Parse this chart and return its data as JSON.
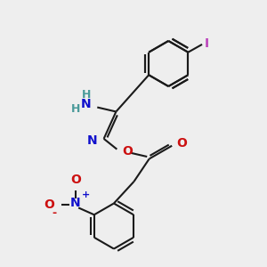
{
  "bg_color": "#eeeeee",
  "bond_color": "#1a1a1a",
  "N_color": "#1010cc",
  "O_color": "#cc1010",
  "I_color": "#bb44bb",
  "H_color": "#4a9a9a",
  "lw": 1.5,
  "ring_r": 0.52,
  "figsize": [
    3.0,
    3.0
  ],
  "dpi": 100,
  "xlim": [
    0,
    6
  ],
  "ylim": [
    0,
    6
  ]
}
